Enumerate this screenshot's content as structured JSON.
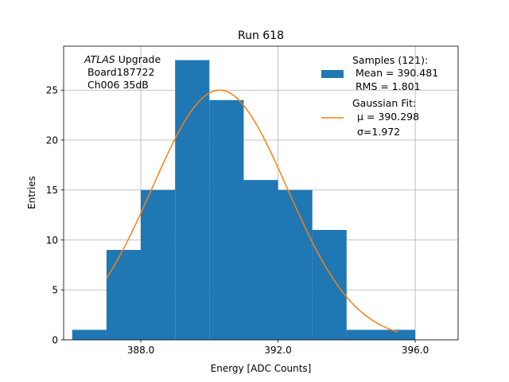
{
  "chart_data": {
    "type": "bar",
    "title": "Run 618",
    "xlabel": "Energy [ADC Counts]",
    "ylabel": "Entries",
    "xlim": [
      385.75,
      397.25
    ],
    "ylim": [
      0,
      29.4
    ],
    "grid": true,
    "x_ticks": [
      388,
      392,
      396
    ],
    "x_tick_labels": [
      "388.0",
      "392.0",
      "396.0"
    ],
    "y_ticks": [
      0,
      5,
      10,
      15,
      20,
      25
    ],
    "y_tick_labels": [
      "0",
      "5",
      "10",
      "15",
      "20",
      "25"
    ],
    "bin_edges": [
      386,
      387,
      388,
      389,
      390,
      391,
      392,
      393,
      394,
      395,
      396
    ],
    "values": [
      1,
      9,
      15,
      28,
      24,
      16,
      15,
      11,
      1,
      1
    ],
    "fit": {
      "mu": 390.298,
      "sigma": 1.972,
      "amplitude": 25,
      "x_range": [
        387,
        395.5
      ]
    },
    "annotation": {
      "italic": "ATLAS",
      "rest": " Upgrade",
      "line2": " Board187722",
      "line3": " Ch006 35dB"
    },
    "legend": {
      "placement": "upper-right",
      "hist_lines": [
        "Samples (121):",
        " Mean = 390.481",
        " RMS = 1.801"
      ],
      "fit_title": "Gaussian Fit:",
      "fit_mu_label": "μ = 390.298",
      "fit_sigma_label": "σ=1.972"
    },
    "colors": {
      "bars": "#1f77b4",
      "fit": "#ff7f0e",
      "grid": "#b0b0b0"
    }
  }
}
